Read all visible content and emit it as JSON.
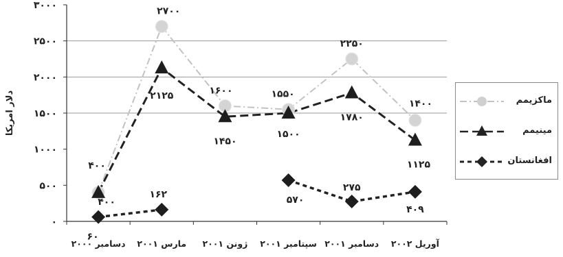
{
  "chart_data": {
    "type": "line",
    "title": "",
    "ylabel": "دلار امریکا",
    "xlabel": "",
    "categories": [
      "دسامبر ۲۰۰۰",
      "مارس ۲۰۰۱",
      "ژونن ۲۰۰۱",
      "سپتامبر ۲۰۰۱",
      "دسامبر ۲۰۰۱",
      "آوریل ۲۰۰۲"
    ],
    "ylim": [
      0,
      3000
    ],
    "yticks": [
      0,
      500,
      1000,
      1500,
      2000,
      2500,
      3000
    ],
    "ytick_labels": [
      "۰",
      "۵۰۰",
      "۱۰۰۰",
      "۱۵۰۰",
      "۲۰۰۰",
      "۲۵۰۰",
      "۳۰۰۰"
    ],
    "grid": "horizontal",
    "legend_position": "right",
    "series": [
      {
        "name": "ماکزیمم",
        "color": "#c2c2c2",
        "marker": "circle",
        "line": "dash-dot",
        "values": [
          400,
          2700,
          1600,
          1550,
          2250,
          1400
        ],
        "labels": [
          "۴۰۰",
          "۲۷۰۰",
          "۱۶۰۰",
          "۱۵۵۰",
          "۲۲۵۰",
          "۱۴۰۰"
        ]
      },
      {
        "name": "مینیمم",
        "color": "#222222",
        "marker": "triangle",
        "line": "dashed",
        "values": [
          400,
          2125,
          1450,
          1500,
          1780,
          1125
        ],
        "labels": [
          "۴۰۰",
          "۲۱۲۵",
          "۱۴۵۰",
          "۱۵۰۰",
          "۱۷۸۰",
          "۱۱۲۵"
        ]
      },
      {
        "name": "افغانستان",
        "color": "#222222",
        "marker": "diamond",
        "line": "dotted",
        "values": [
          60,
          162,
          null,
          570,
          275,
          409
        ],
        "labels": [
          "۶۰",
          "۱۶۲",
          "",
          "۵۷۰",
          "۲۷۵",
          "۴۰۹"
        ]
      }
    ]
  }
}
